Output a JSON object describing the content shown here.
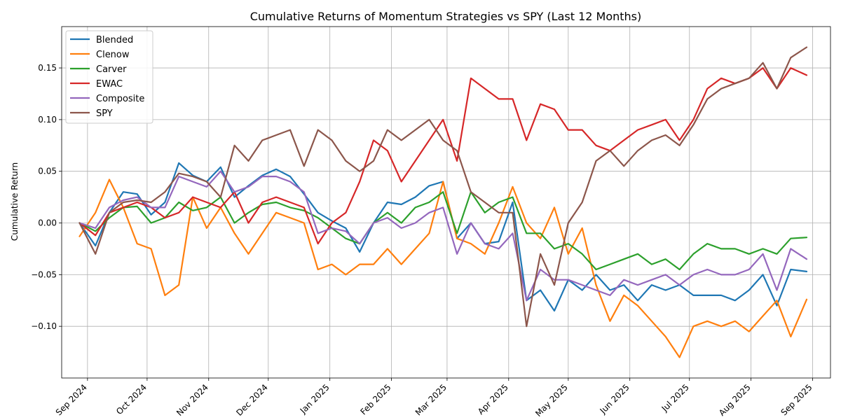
{
  "chart_data": {
    "type": "line",
    "title": "Cumulative Returns of Momentum Strategies vs SPY (Last 12 Months)",
    "xlabel": "",
    "ylabel": "Cumulative Return",
    "ylim": [
      -0.15,
      0.19
    ],
    "yticks": [
      -0.1,
      -0.05,
      0.0,
      0.05,
      0.1,
      0.15
    ],
    "ytick_labels": [
      "−0.10",
      "−0.05",
      "0.00",
      "0.05",
      "0.10",
      "0.15"
    ],
    "xlim": [
      "2024-08-19",
      "2025-09-10"
    ],
    "xticks": [
      "2024-09-01",
      "2024-10-01",
      "2024-11-01",
      "2024-12-01",
      "2025-01-01",
      "2025-02-01",
      "2025-03-01",
      "2025-04-01",
      "2025-05-01",
      "2025-06-01",
      "2025-07-01",
      "2025-08-01",
      "2025-09-01"
    ],
    "xtick_labels": [
      "Sep 2024",
      "Oct 2024",
      "Nov 2024",
      "Dec 2024",
      "Jan 2025",
      "Feb 2025",
      "Mar 2025",
      "Apr 2025",
      "May 2025",
      "Jun 2025",
      "Jul 2025",
      "Aug 2025",
      "Sep 2025"
    ],
    "grid": true,
    "legend_position": "top-left",
    "x": [
      "2024-08-28",
      "2024-09-05",
      "2024-09-12",
      "2024-09-19",
      "2024-09-26",
      "2024-10-03",
      "2024-10-10",
      "2024-10-17",
      "2024-10-24",
      "2024-10-31",
      "2024-11-07",
      "2024-11-14",
      "2024-11-21",
      "2024-11-28",
      "2024-12-05",
      "2024-12-12",
      "2024-12-19",
      "2024-12-26",
      "2025-01-02",
      "2025-01-09",
      "2025-01-16",
      "2025-01-23",
      "2025-01-30",
      "2025-02-06",
      "2025-02-13",
      "2025-02-20",
      "2025-02-27",
      "2025-03-06",
      "2025-03-13",
      "2025-03-20",
      "2025-03-27",
      "2025-04-03",
      "2025-04-10",
      "2025-04-17",
      "2025-04-24",
      "2025-05-01",
      "2025-05-08",
      "2025-05-15",
      "2025-05-22",
      "2025-05-29",
      "2025-06-05",
      "2025-06-12",
      "2025-06-19",
      "2025-06-26",
      "2025-07-03",
      "2025-07-10",
      "2025-07-17",
      "2025-07-24",
      "2025-07-31",
      "2025-08-07",
      "2025-08-14",
      "2025-08-21",
      "2025-08-29"
    ],
    "series": [
      {
        "name": "Blended",
        "color": "#1f77b4",
        "values": [
          0.0,
          -0.022,
          0.01,
          0.03,
          0.028,
          0.008,
          0.02,
          0.058,
          0.046,
          0.04,
          0.054,
          0.025,
          0.036,
          0.046,
          0.052,
          0.045,
          0.028,
          0.01,
          0.002,
          -0.005,
          -0.028,
          0.0,
          0.02,
          0.018,
          0.025,
          0.036,
          0.04,
          -0.015,
          0.0,
          -0.02,
          -0.018,
          0.02,
          -0.075,
          -0.065,
          -0.085,
          -0.055,
          -0.065,
          -0.05,
          -0.065,
          -0.06,
          -0.075,
          -0.06,
          -0.065,
          -0.06,
          -0.07,
          -0.07,
          -0.07,
          -0.075,
          -0.065,
          -0.05,
          -0.08,
          -0.045,
          -0.047
        ]
      },
      {
        "name": "Clenow",
        "color": "#ff7f0e",
        "values": [
          -0.013,
          0.01,
          0.042,
          0.015,
          -0.02,
          -0.025,
          -0.07,
          -0.06,
          0.025,
          -0.005,
          0.015,
          -0.01,
          -0.03,
          -0.01,
          0.01,
          0.005,
          0.0,
          -0.045,
          -0.04,
          -0.05,
          -0.04,
          -0.04,
          -0.025,
          -0.04,
          -0.025,
          -0.01,
          0.04,
          -0.015,
          -0.02,
          -0.03,
          0.0,
          0.035,
          0.0,
          -0.015,
          0.015,
          -0.03,
          -0.005,
          -0.06,
          -0.095,
          -0.07,
          -0.08,
          -0.095,
          -0.11,
          -0.13,
          -0.1,
          -0.095,
          -0.1,
          -0.095,
          -0.105,
          -0.09,
          -0.075,
          -0.11,
          -0.074
        ]
      },
      {
        "name": "Carver",
        "color": "#2ca02c",
        "values": [
          0.0,
          -0.008,
          0.005,
          0.015,
          0.016,
          0.0,
          0.005,
          0.02,
          0.012,
          0.015,
          0.025,
          0.0,
          0.01,
          0.018,
          0.02,
          0.015,
          0.012,
          0.005,
          -0.005,
          -0.015,
          -0.02,
          0.0,
          0.01,
          0.0,
          0.015,
          0.02,
          0.03,
          -0.01,
          0.03,
          0.01,
          0.02,
          0.025,
          -0.01,
          -0.01,
          -0.025,
          -0.02,
          -0.03,
          -0.045,
          -0.04,
          -0.035,
          -0.03,
          -0.04,
          -0.035,
          -0.045,
          -0.03,
          -0.02,
          -0.025,
          -0.025,
          -0.03,
          -0.025,
          -0.03,
          -0.015,
          -0.014
        ]
      },
      {
        "name": "EWAC",
        "color": "#d62728",
        "values": [
          0.0,
          -0.012,
          0.01,
          0.015,
          0.02,
          0.015,
          0.005,
          0.01,
          0.025,
          0.02,
          0.015,
          0.03,
          0.0,
          0.02,
          0.025,
          0.02,
          0.015,
          -0.02,
          0.0,
          0.01,
          0.04,
          0.08,
          0.07,
          0.04,
          0.06,
          0.08,
          0.1,
          0.06,
          0.14,
          0.13,
          0.12,
          0.12,
          0.08,
          0.115,
          0.11,
          0.09,
          0.09,
          0.075,
          0.07,
          0.08,
          0.09,
          0.095,
          0.1,
          0.08,
          0.1,
          0.13,
          0.14,
          0.135,
          0.14,
          0.15,
          0.13,
          0.15,
          0.143
        ]
      },
      {
        "name": "Composite",
        "color": "#9467bd",
        "values": [
          0.0,
          -0.005,
          0.015,
          0.022,
          0.025,
          0.015,
          0.015,
          0.045,
          0.04,
          0.035,
          0.05,
          0.03,
          0.035,
          0.045,
          0.045,
          0.04,
          0.03,
          -0.01,
          -0.005,
          -0.008,
          -0.02,
          0.0,
          0.005,
          -0.005,
          0.0,
          0.01,
          0.015,
          -0.03,
          0.0,
          -0.02,
          -0.025,
          -0.01,
          -0.075,
          -0.045,
          -0.055,
          -0.055,
          -0.06,
          -0.065,
          -0.07,
          -0.055,
          -0.06,
          -0.055,
          -0.05,
          -0.06,
          -0.05,
          -0.045,
          -0.05,
          -0.05,
          -0.045,
          -0.03,
          -0.065,
          -0.025,
          -0.035
        ]
      },
      {
        "name": "SPY",
        "color": "#8c564b",
        "values": [
          0.0,
          -0.03,
          0.01,
          0.02,
          0.022,
          0.02,
          0.03,
          0.048,
          0.045,
          0.04,
          0.025,
          0.075,
          0.06,
          0.08,
          0.085,
          0.09,
          0.055,
          0.09,
          0.08,
          0.06,
          0.05,
          0.06,
          0.09,
          0.08,
          0.09,
          0.1,
          0.08,
          0.07,
          0.03,
          0.02,
          0.01,
          0.01,
          -0.1,
          -0.03,
          -0.06,
          0.0,
          0.02,
          0.06,
          0.07,
          0.055,
          0.07,
          0.08,
          0.085,
          0.075,
          0.095,
          0.12,
          0.13,
          0.135,
          0.14,
          0.155,
          0.13,
          0.16,
          0.17
        ]
      }
    ]
  }
}
